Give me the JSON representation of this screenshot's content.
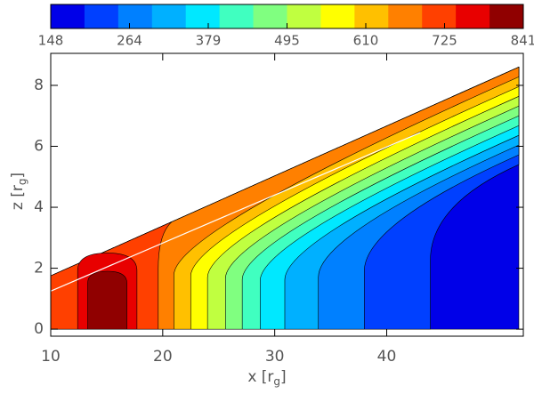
{
  "chart_data": {
    "type": "contour",
    "colorbar": {
      "colors": [
        "#0000e8",
        "#0040ff",
        "#0080ff",
        "#00b0ff",
        "#00e8ff",
        "#40ffc0",
        "#80ff80",
        "#c0ff40",
        "#ffff00",
        "#ffc000",
        "#ff8000",
        "#ff4000",
        "#e80000",
        "#900000"
      ],
      "ticks": [
        148,
        264,
        379,
        495,
        610,
        725,
        841
      ]
    },
    "xlabel": [
      "x [r",
      "g",
      "]"
    ],
    "ylabel": [
      "z [r",
      "g",
      "]"
    ],
    "xlim": [
      10,
      52.2
    ],
    "ylim": [
      -0.23,
      9.05
    ],
    "xticks": [
      10,
      20,
      30,
      40
    ],
    "yticks": [
      0,
      2,
      4,
      6,
      8
    ],
    "domain": {
      "x": [
        10,
        51.8
      ],
      "top": [
        1.75,
        8.6
      ]
    },
    "boundaries_x": [
      43.9,
      38.0,
      33.9,
      30.9,
      28.7,
      27.1,
      25.6,
      24.0,
      22.5,
      21.0,
      19.6
    ],
    "blob": {
      "x": [
        [
          12.4,
          17.7
        ],
        [
          13.3,
          16.8
        ]
      ],
      "top": [
        2.5,
        1.9
      ]
    },
    "line": {
      "x": [
        10,
        43
      ],
      "y": [
        1.25,
        6.45
      ],
      "color": "#ffffff"
    }
  }
}
